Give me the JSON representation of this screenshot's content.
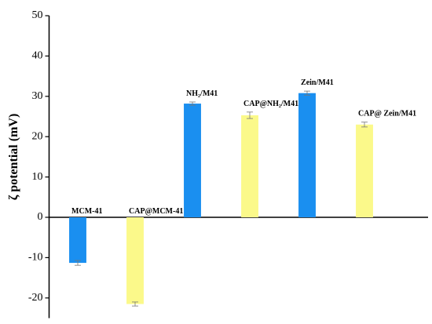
{
  "chart_data": {
    "type": "bar",
    "ylabel": "ζ potential (mV)",
    "categories": [
      "MCM-41",
      "CAP@MCM-41",
      "NH₂/M41",
      "CAP@NH₂/M41",
      "Zein/M41",
      "CAP@ Zein/M41"
    ],
    "values": [
      -11.3,
      -21.5,
      28.2,
      25.3,
      30.8,
      23.0
    ],
    "errors": [
      0.6,
      0.5,
      0.4,
      0.8,
      0.5,
      0.6
    ],
    "colors": [
      "#1a8ff0",
      "#fbf98a",
      "#1a8ff0",
      "#fbf98a",
      "#1a8ff0",
      "#fbf98a"
    ],
    "ylim": [
      -25,
      50
    ],
    "yticks": [
      -20,
      -10,
      0,
      10,
      20,
      30,
      40,
      50
    ]
  }
}
